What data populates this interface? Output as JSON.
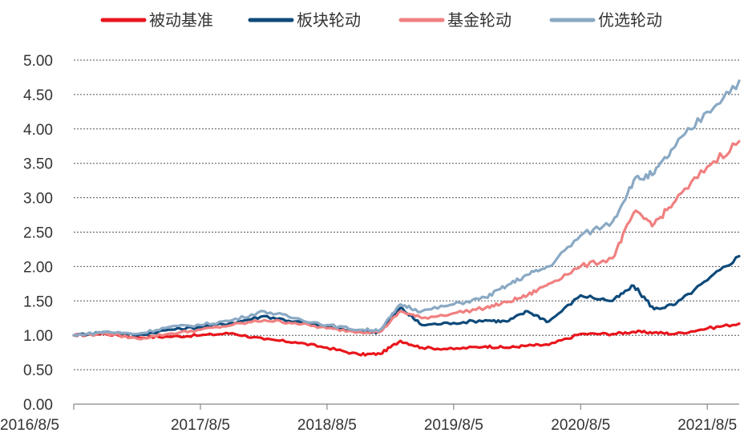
{
  "chart_data": {
    "type": "line",
    "title": "",
    "xlabel": "",
    "ylabel": "",
    "ylim": [
      0,
      5
    ],
    "yticks": [
      "0.00",
      "0.50",
      "1.00",
      "1.50",
      "2.00",
      "2.50",
      "3.00",
      "3.50",
      "4.00",
      "4.50",
      "5.00"
    ],
    "xticks": [
      "2016/8/5",
      "2017/8/5",
      "2018/8/5",
      "2019/8/5",
      "2020/8/5",
      "2021/8/5"
    ],
    "grid": "horizontal dashed",
    "legend_position": "top",
    "x": [
      "2016/8/5",
      "2016/11/5",
      "2017/2/5",
      "2017/5/5",
      "2017/8/5",
      "2017/11/5",
      "2018/2/5",
      "2018/5/5",
      "2018/8/5",
      "2018/11/5",
      "2019/1/5",
      "2019/3/5",
      "2019/5/5",
      "2019/8/5",
      "2019/11/5",
      "2020/1/5",
      "2020/3/5",
      "2020/5/5",
      "2020/8/5",
      "2020/11/5",
      "2021/1/5",
      "2021/3/5",
      "2021/5/5",
      "2021/8/5",
      "2021/11/5"
    ],
    "series": [
      {
        "name": "被动基准",
        "color": "#e8161c",
        "values": [
          1.0,
          1.02,
          0.97,
          0.98,
          1.0,
          1.03,
          0.94,
          0.9,
          0.82,
          0.72,
          0.73,
          0.92,
          0.82,
          0.8,
          0.84,
          0.82,
          0.85,
          0.86,
          1.02,
          1.02,
          1.05,
          1.04,
          1.02,
          1.1,
          1.17
        ]
      },
      {
        "name": "板块轮动",
        "color": "#0e4a7a",
        "values": [
          1.0,
          1.05,
          1.0,
          1.08,
          1.12,
          1.18,
          1.28,
          1.2,
          1.12,
          1.05,
          1.05,
          1.4,
          1.15,
          1.18,
          1.22,
          1.2,
          1.35,
          1.2,
          1.58,
          1.5,
          1.72,
          1.38,
          1.45,
          1.8,
          2.15
        ]
      },
      {
        "name": "基金轮动",
        "color": "#f08080",
        "values": [
          1.0,
          1.03,
          0.95,
          1.02,
          1.08,
          1.15,
          1.22,
          1.18,
          1.1,
          1.05,
          1.05,
          1.35,
          1.25,
          1.32,
          1.4,
          1.48,
          1.58,
          1.75,
          2.0,
          2.12,
          2.78,
          2.62,
          2.95,
          3.45,
          3.82
        ]
      },
      {
        "name": "优选轮动",
        "color": "#8aa9c4",
        "values": [
          1.0,
          1.05,
          1.02,
          1.12,
          1.15,
          1.22,
          1.35,
          1.25,
          1.15,
          1.08,
          1.08,
          1.45,
          1.35,
          1.45,
          1.55,
          1.72,
          1.88,
          2.0,
          2.45,
          2.65,
          3.25,
          3.35,
          3.75,
          4.25,
          4.7
        ]
      }
    ]
  }
}
